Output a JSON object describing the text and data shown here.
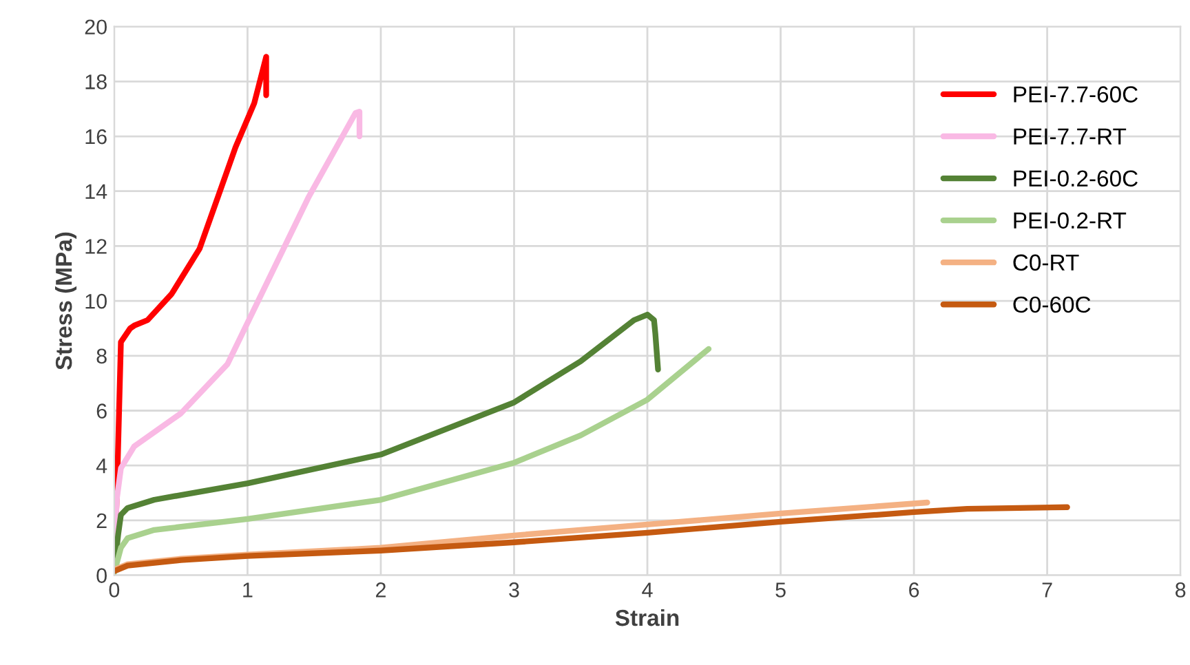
{
  "chart_data": {
    "type": "line",
    "xlabel": "Strain",
    "ylabel": "Stress (MPa)",
    "xlim": [
      0,
      8
    ],
    "ylim": [
      0,
      20
    ],
    "xticks": [
      0,
      1,
      2,
      3,
      4,
      5,
      6,
      7,
      8
    ],
    "yticks": [
      0,
      2,
      4,
      6,
      8,
      10,
      12,
      14,
      16,
      18,
      20
    ],
    "grid": true,
    "legend": "top right",
    "marker": "none",
    "line_style": "solid",
    "series": [
      {
        "name": "PEI-7.7-60C",
        "color": "#ff0000",
        "x": [
          0,
          0.02,
          0.05,
          0.12,
          0.15,
          0.25,
          0.43,
          0.64,
          0.91,
          1.05,
          1.14,
          1.14
        ],
        "values": [
          0.5,
          3,
          8.5,
          9.0,
          9.1,
          9.3,
          10.25,
          11.9,
          15.6,
          17.2,
          18.9,
          17.5
        ]
      },
      {
        "name": "PEI-7.7-RT",
        "color": "#f9b9e4",
        "x": [
          0,
          0.02,
          0.05,
          0.15,
          0.5,
          0.85,
          1.12,
          1.46,
          1.81,
          1.84,
          1.84
        ],
        "values": [
          1,
          2.8,
          3.9,
          4.7,
          5.9,
          7.7,
          10.4,
          13.8,
          16.85,
          16.9,
          16.0
        ]
      },
      {
        "name": "PEI-0.2-60C",
        "color": "#548235",
        "x": [
          0,
          0.03,
          0.05,
          0.1,
          0.3,
          1,
          2,
          3,
          3.5,
          3.9,
          4.0,
          4.05,
          4.06,
          4.08
        ],
        "values": [
          0.2,
          1.5,
          2.2,
          2.45,
          2.75,
          3.35,
          4.4,
          6.3,
          7.8,
          9.3,
          9.5,
          9.3,
          8.8,
          7.5
        ]
      },
      {
        "name": "PEI-0.2-RT",
        "color": "#a9d18e",
        "x": [
          0,
          0.05,
          0.1,
          0.3,
          1,
          2,
          3,
          3.5,
          4,
          4.46
        ],
        "values": [
          0.1,
          1.0,
          1.35,
          1.65,
          2.05,
          2.75,
          4.1,
          5.1,
          6.4,
          8.25
        ]
      },
      {
        "name": "C0-RT",
        "color": "#f4b183",
        "x": [
          0,
          0.1,
          0.5,
          1,
          2,
          3,
          4,
          5,
          6.1
        ],
        "values": [
          0.2,
          0.4,
          0.6,
          0.75,
          1.0,
          1.45,
          1.85,
          2.25,
          2.65
        ]
      },
      {
        "name": "C0-60C",
        "color": "#c55a11",
        "x": [
          0,
          0.1,
          0.5,
          1,
          2,
          3,
          4,
          5,
          6,
          6.4,
          7.15
        ],
        "values": [
          0.15,
          0.35,
          0.55,
          0.7,
          0.9,
          1.2,
          1.55,
          1.95,
          2.3,
          2.42,
          2.48
        ]
      }
    ]
  }
}
